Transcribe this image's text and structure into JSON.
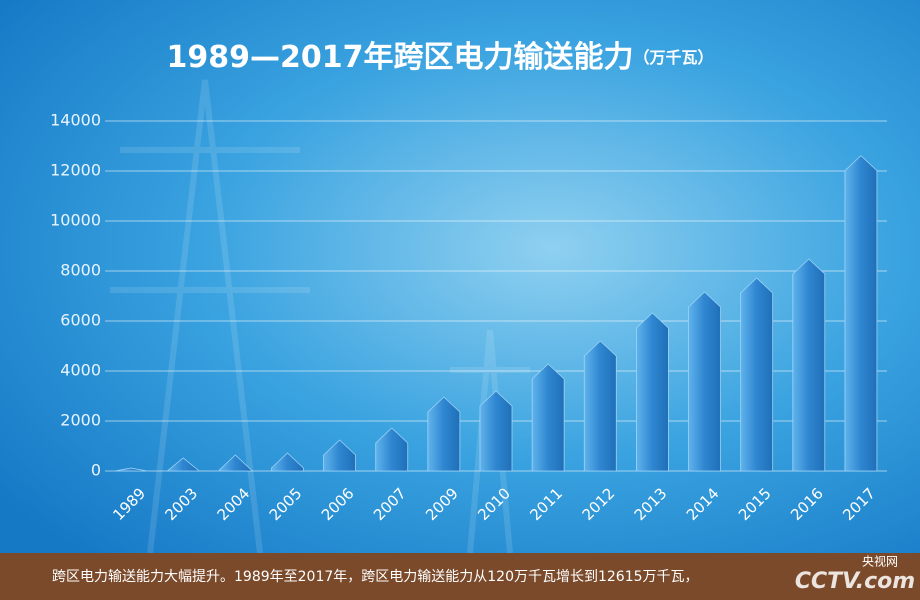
{
  "chart_data": {
    "type": "bar",
    "title": "1989—2017年跨区电力输送能力",
    "unit": "（万千瓦）",
    "categories": [
      "1989",
      "2003",
      "2004",
      "2005",
      "2006",
      "2007",
      "2009",
      "2010",
      "2011",
      "2012",
      "2013",
      "2014",
      "2015",
      "2016",
      "2017"
    ],
    "values": [
      120,
      520,
      640,
      720,
      1240,
      1720,
      2960,
      3200,
      4280,
      5200,
      6320,
      7160,
      7720,
      8480,
      12615
    ],
    "color": "#2f86d0",
    "ylim": [
      0,
      14000
    ],
    "yticks": [
      0,
      2000,
      4000,
      6000,
      8000,
      10000,
      12000,
      14000
    ],
    "grid": true
  },
  "caption": "跨区电力输送能力大幅提升。1989年至2017年，跨区电力输送能力从120万千瓦增长到12615万千瓦，",
  "logo": {
    "cn": "央视网",
    "en": "CCTV.com"
  }
}
